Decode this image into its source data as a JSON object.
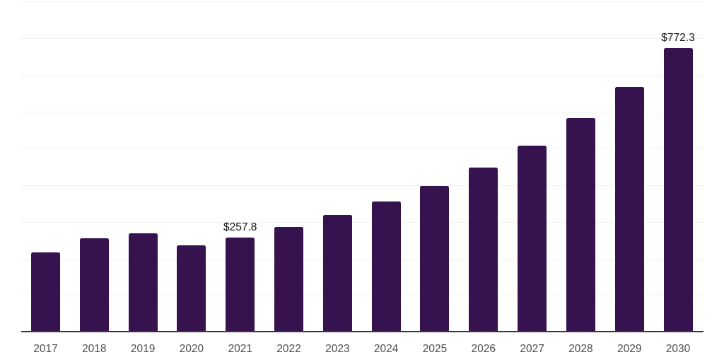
{
  "chart_data": {
    "type": "bar",
    "title": "",
    "xlabel": "",
    "ylabel": "",
    "categories": [
      "2017",
      "2018",
      "2019",
      "2020",
      "2021",
      "2022",
      "2023",
      "2024",
      "2025",
      "2026",
      "2027",
      "2028",
      "2029",
      "2030"
    ],
    "values": [
      218.0,
      255.0,
      268.5,
      236.0,
      257.8,
      286.0,
      318.5,
      355.0,
      397.5,
      449.0,
      507.0,
      582.0,
      668.0,
      772.3
    ],
    "labeled_points": [
      {
        "category": "2021",
        "label": "$257.8"
      },
      {
        "category": "2030",
        "label": "$772.3"
      }
    ],
    "ylim": [
      0,
      900
    ],
    "gridline_interval": 100,
    "grid_on": true,
    "legend": "none",
    "y_axis_labels_visible": false,
    "colors": {
      "bar": "#36124E",
      "gridline": "#f1f1f1",
      "axis_line": "#383838",
      "tick_label": "#4d4d4d",
      "value_label": "#111111",
      "background": "#ffffff"
    }
  }
}
